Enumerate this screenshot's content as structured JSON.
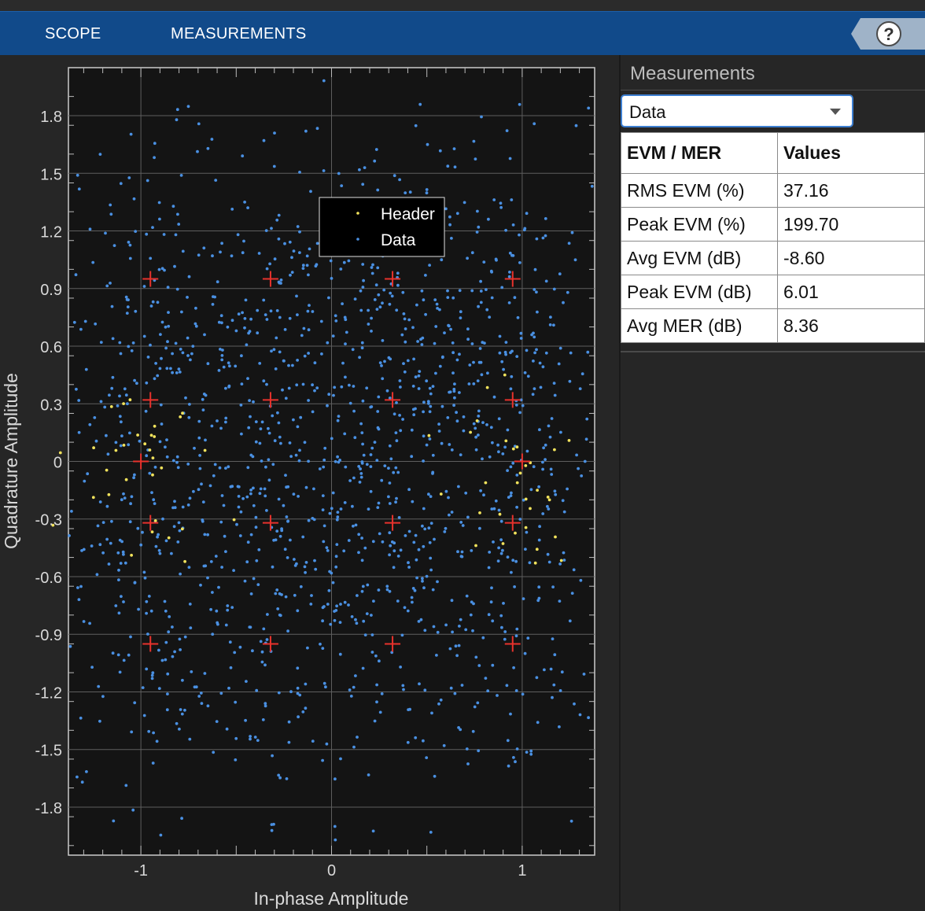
{
  "toolbar": {
    "tabs": [
      {
        "label": "SCOPE"
      },
      {
        "label": "MEASUREMENTS"
      }
    ],
    "help_icon": "help-icon"
  },
  "colors": {
    "toolbar": "#114a8a",
    "plot_bg": "#141414",
    "header_points": "#f2e35c",
    "data_points": "#4a90e2",
    "reference": "#e8322c"
  },
  "chart_data": {
    "type": "scatter",
    "xlabel": "In-phase Amplitude",
    "ylabel": "Quadrature Amplitude",
    "xlim": [
      -1.38,
      1.38
    ],
    "ylim": [
      -2.05,
      2.05
    ],
    "x_ticks": [
      "-1",
      "0",
      "1"
    ],
    "y_ticks": [
      "1.8",
      "1.5",
      "1.2",
      "0.9",
      "0.6",
      "0.3",
      "0",
      "-0.3",
      "-0.6",
      "-0.9",
      "-1.2",
      "-1.5",
      "-1.8"
    ],
    "grid": true,
    "legend": {
      "placement": "top-center",
      "entries": [
        "Header",
        "Data"
      ]
    },
    "reference_constellation": [
      [
        -0.95,
        0.95
      ],
      [
        -0.32,
        0.95
      ],
      [
        0.32,
        0.95
      ],
      [
        0.95,
        0.95
      ],
      [
        -0.95,
        0.32
      ],
      [
        -0.32,
        0.32
      ],
      [
        0.32,
        0.32
      ],
      [
        0.95,
        0.32
      ],
      [
        -0.95,
        -0.32
      ],
      [
        -0.32,
        -0.32
      ],
      [
        0.32,
        -0.32
      ],
      [
        0.95,
        -0.32
      ],
      [
        -0.95,
        -0.95
      ],
      [
        -0.32,
        -0.95
      ],
      [
        0.32,
        -0.95
      ],
      [
        0.95,
        -0.95
      ],
      [
        -1.0,
        0.0
      ],
      [
        1.0,
        0.0
      ]
    ],
    "series": [
      {
        "name": "Header",
        "points": "~60 samples clustered near (-1,0) and (1,0)"
      },
      {
        "name": "Data",
        "points": "~1500 noisy samples spread over the 16-QAM grid"
      }
    ]
  },
  "measurements": {
    "title": "Measurements",
    "selected": "Data",
    "columns": [
      "EVM / MER",
      "Values"
    ],
    "rows": [
      {
        "label": "RMS EVM (%)",
        "value": "37.16"
      },
      {
        "label": "Peak EVM (%)",
        "value": "199.70"
      },
      {
        "label": "Avg EVM (dB)",
        "value": "-8.60"
      },
      {
        "label": "Peak EVM (dB)",
        "value": "6.01"
      },
      {
        "label": "Avg MER (dB)",
        "value": "8.36"
      }
    ]
  }
}
